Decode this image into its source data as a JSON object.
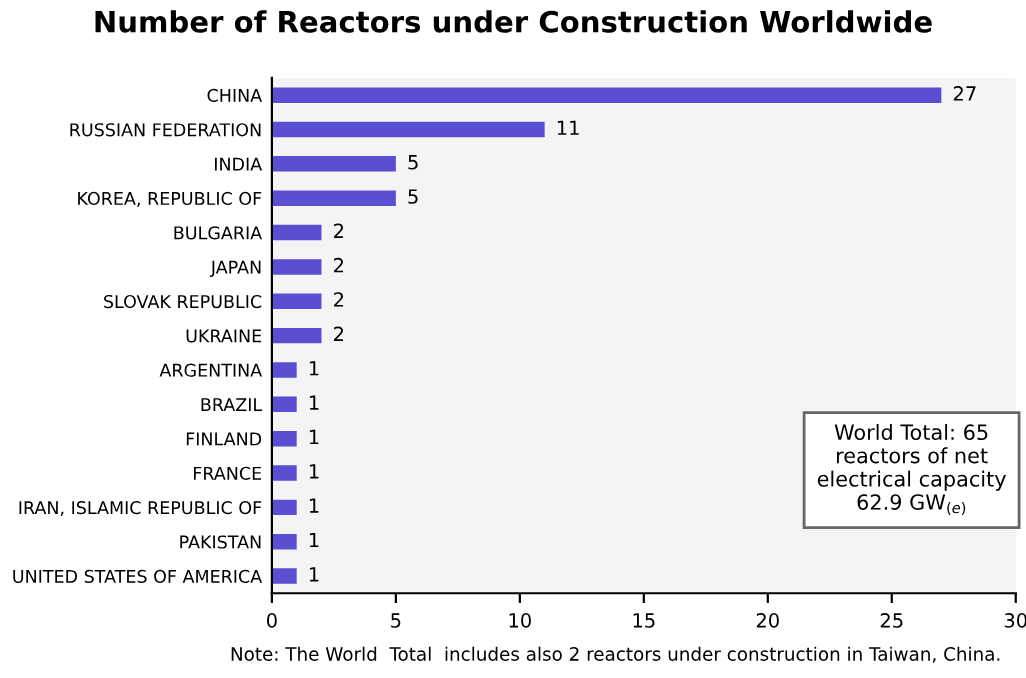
{
  "chart_data": {
    "type": "bar",
    "orientation": "horizontal",
    "title": "Number of Reactors under Construction Worldwide",
    "categories": [
      "CHINA",
      "RUSSIAN FEDERATION",
      "INDIA",
      "KOREA, REPUBLIC OF",
      "BULGARIA",
      "JAPAN",
      "SLOVAK REPUBLIC",
      "UKRAINE",
      "ARGENTINA",
      "BRAZIL",
      "FINLAND",
      "FRANCE",
      "IRAN, ISLAMIC REPUBLIC OF",
      "PAKISTAN",
      "UNITED STATES OF AMERICA"
    ],
    "values": [
      27,
      11,
      5,
      5,
      2,
      2,
      2,
      2,
      1,
      1,
      1,
      1,
      1,
      1,
      1
    ],
    "color": "#5a4fd0",
    "xlim": [
      0,
      30
    ],
    "xticks": [
      0,
      5,
      10,
      15,
      20,
      25,
      30
    ],
    "data_labels": true,
    "grid": false,
    "annotations": [
      "World Total: 65 reactors of net electrical capacity 62.9 GW$_{(e)}$",
      "Note: The World  Total  includes also 2 reactors under construction in Taiwan, China."
    ]
  }
}
